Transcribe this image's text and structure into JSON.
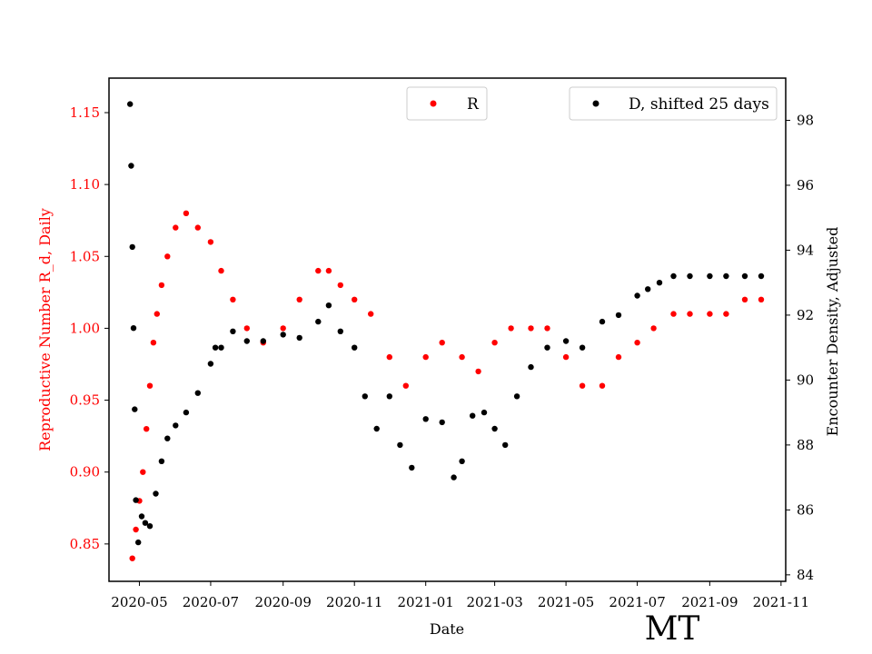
{
  "chart_data": {
    "type": "scatter",
    "xlabel": "Date",
    "ylabel_left": "Reproductive Number R_d, Daily",
    "ylabel_right": "Encounter Density, Adjusted",
    "annotation": "MT",
    "x_ticks": [
      "2020-05",
      "2020-07",
      "2020-09",
      "2020-11",
      "2021-01",
      "2021-03",
      "2021-05",
      "2021-07",
      "2021-09",
      "2021-11"
    ],
    "x_tick_dates": [
      "2020-05-01",
      "2020-07-01",
      "2020-09-01",
      "2020-11-01",
      "2021-01-01",
      "2021-03-01",
      "2021-05-01",
      "2021-07-01",
      "2021-09-01",
      "2021-11-01"
    ],
    "xlim": [
      "2020-04-05",
      "2021-11-05"
    ],
    "left_axis": {
      "ylim": [
        0.824,
        1.174
      ],
      "ticks": [
        "0.85",
        "0.90",
        "0.95",
        "1.00",
        "1.05",
        "1.10",
        "1.15"
      ],
      "color": "#ff0000"
    },
    "right_axis": {
      "ylim": [
        83.8,
        99.3
      ],
      "ticks": [
        "84",
        "86",
        "88",
        "90",
        "92",
        "94",
        "96",
        "98"
      ],
      "color": "#000000"
    },
    "legend": [
      {
        "label": "R",
        "color": "#ff0000",
        "placement": "top-center"
      },
      {
        "label": "D, shifted 25 days",
        "color": "#000000",
        "placement": "top-right"
      }
    ],
    "series": [
      {
        "name": "R",
        "axis": "left",
        "color": "#ff0000",
        "points": [
          [
            "2020-04-25",
            0.84
          ],
          [
            "2020-04-28",
            0.86
          ],
          [
            "2020-05-01",
            0.88
          ],
          [
            "2020-05-04",
            0.9
          ],
          [
            "2020-05-07",
            0.93
          ],
          [
            "2020-05-10",
            0.96
          ],
          [
            "2020-05-13",
            0.99
          ],
          [
            "2020-05-16",
            1.01
          ],
          [
            "2020-05-20",
            1.03
          ],
          [
            "2020-05-25",
            1.05
          ],
          [
            "2020-06-01",
            1.07
          ],
          [
            "2020-06-10",
            1.08
          ],
          [
            "2020-06-20",
            1.07
          ],
          [
            "2020-07-01",
            1.06
          ],
          [
            "2020-07-10",
            1.04
          ],
          [
            "2020-07-20",
            1.02
          ],
          [
            "2020-08-01",
            1.0
          ],
          [
            "2020-08-15",
            0.99
          ],
          [
            "2020-09-01",
            1.0
          ],
          [
            "2020-09-15",
            1.02
          ],
          [
            "2020-10-01",
            1.04
          ],
          [
            "2020-10-10",
            1.04
          ],
          [
            "2020-10-20",
            1.03
          ],
          [
            "2020-11-01",
            1.02
          ],
          [
            "2020-11-15",
            1.01
          ],
          [
            "2020-12-01",
            0.98
          ],
          [
            "2020-12-15",
            0.96
          ],
          [
            "2021-01-01",
            0.98
          ],
          [
            "2021-01-15",
            0.99
          ],
          [
            "2021-02-01",
            0.98
          ],
          [
            "2021-02-15",
            0.97
          ],
          [
            "2021-03-01",
            0.99
          ],
          [
            "2021-03-15",
            1.0
          ],
          [
            "2021-04-01",
            1.0
          ],
          [
            "2021-04-15",
            1.0
          ],
          [
            "2021-05-01",
            0.98
          ],
          [
            "2021-05-15",
            0.96
          ],
          [
            "2021-06-01",
            0.96
          ],
          [
            "2021-06-15",
            0.98
          ],
          [
            "2021-07-01",
            0.99
          ],
          [
            "2021-07-15",
            1.0
          ],
          [
            "2021-08-01",
            1.01
          ],
          [
            "2021-08-15",
            1.01
          ],
          [
            "2021-09-01",
            1.01
          ],
          [
            "2021-09-15",
            1.01
          ],
          [
            "2021-10-01",
            1.02
          ],
          [
            "2021-10-15",
            1.02
          ]
        ]
      },
      {
        "name": "D, shifted 25 days",
        "axis": "right",
        "color": "#000000",
        "points": [
          [
            "2020-04-23",
            98.5
          ],
          [
            "2020-04-24",
            96.6
          ],
          [
            "2020-04-25",
            94.1
          ],
          [
            "2020-04-26",
            91.6
          ],
          [
            "2020-04-27",
            89.1
          ],
          [
            "2020-04-28",
            86.3
          ],
          [
            "2020-04-30",
            85.0
          ],
          [
            "2020-05-03",
            85.8
          ],
          [
            "2020-05-06",
            85.6
          ],
          [
            "2020-05-10",
            85.5
          ],
          [
            "2020-05-15",
            86.5
          ],
          [
            "2020-05-20",
            87.5
          ],
          [
            "2020-05-25",
            88.2
          ],
          [
            "2020-06-01",
            88.6
          ],
          [
            "2020-06-10",
            89.0
          ],
          [
            "2020-06-20",
            89.6
          ],
          [
            "2020-07-01",
            90.5
          ],
          [
            "2020-07-05",
            91.0
          ],
          [
            "2020-07-10",
            91.0
          ],
          [
            "2020-07-20",
            91.5
          ],
          [
            "2020-08-01",
            91.2
          ],
          [
            "2020-08-15",
            91.2
          ],
          [
            "2020-09-01",
            91.4
          ],
          [
            "2020-09-15",
            91.3
          ],
          [
            "2020-10-01",
            91.8
          ],
          [
            "2020-10-10",
            92.3
          ],
          [
            "2020-10-20",
            91.5
          ],
          [
            "2020-11-01",
            91.0
          ],
          [
            "2020-11-10",
            89.5
          ],
          [
            "2020-11-20",
            88.5
          ],
          [
            "2020-12-01",
            89.5
          ],
          [
            "2020-12-10",
            88.0
          ],
          [
            "2020-12-20",
            87.3
          ],
          [
            "2021-01-01",
            88.8
          ],
          [
            "2021-01-15",
            88.7
          ],
          [
            "2021-01-25",
            87.0
          ],
          [
            "2021-02-01",
            87.5
          ],
          [
            "2021-02-10",
            88.9
          ],
          [
            "2021-02-20",
            89.0
          ],
          [
            "2021-03-01",
            88.5
          ],
          [
            "2021-03-10",
            88.0
          ],
          [
            "2021-03-20",
            89.5
          ],
          [
            "2021-04-01",
            90.4
          ],
          [
            "2021-04-15",
            91.0
          ],
          [
            "2021-05-01",
            91.2
          ],
          [
            "2021-05-15",
            91.0
          ],
          [
            "2021-06-01",
            91.8
          ],
          [
            "2021-06-15",
            92.0
          ],
          [
            "2021-07-01",
            92.6
          ],
          [
            "2021-07-10",
            92.8
          ],
          [
            "2021-07-20",
            93.0
          ],
          [
            "2021-08-01",
            93.2
          ],
          [
            "2021-08-15",
            93.2
          ],
          [
            "2021-09-01",
            93.2
          ],
          [
            "2021-09-15",
            93.2
          ],
          [
            "2021-10-01",
            93.2
          ],
          [
            "2021-10-15",
            93.2
          ]
        ]
      }
    ]
  }
}
